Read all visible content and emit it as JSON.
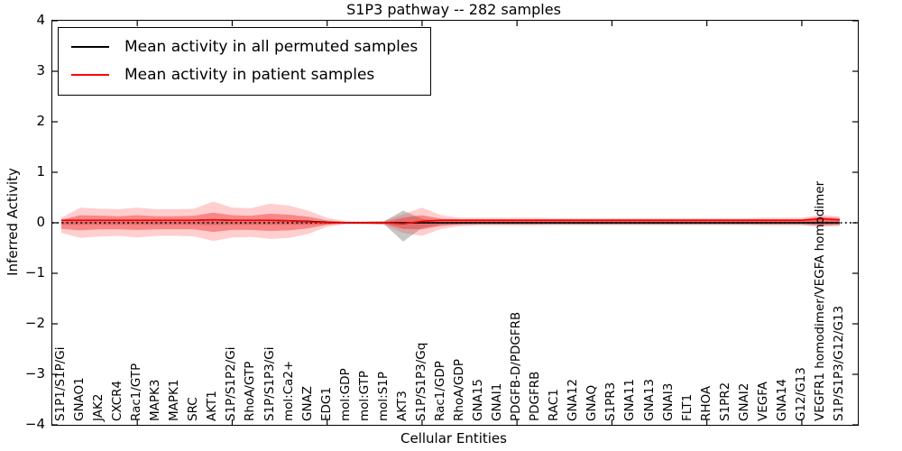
{
  "title": "S1P3 pathway -- 282 samples",
  "legend": {
    "entries": [
      {
        "label": "Mean activity in all permuted samples",
        "color": "#000000"
      },
      {
        "label": "Mean activity in patient samples",
        "color": "#ff0000"
      }
    ]
  },
  "chart_data": {
    "type": "line",
    "title": "S1P3 pathway -- 282 samples",
    "xlabel": "Cellular Entities",
    "ylabel": "Inferred Activity",
    "ylim": [
      -4,
      4
    ],
    "yticks": [
      4,
      3,
      2,
      1,
      0,
      -1,
      -2,
      -3,
      -4
    ],
    "grid": false,
    "legend_position": "upper left",
    "baseline": {
      "y": 0,
      "style": "dotted",
      "color": "#000000"
    },
    "categories": [
      "S1P1/S1P/Gi",
      "GNAO1",
      "JAK2",
      "CXCR4",
      "Rac1/GTP",
      "MAPK3",
      "MAPK1",
      "SRC",
      "AKT1",
      "S1P/S1P2/Gi",
      "RhoA/GTP",
      "S1P/S1P3/Gi",
      "mol:Ca2+",
      "GNAZ",
      "EDG1",
      "mol:GDP",
      "mol:GTP",
      "mol:S1P",
      "AKT3",
      "S1P/S1P3/Gq",
      "Rac1/GDP",
      "RhoA/GDP",
      "GNA15",
      "GNAI1",
      "PDGFB-D/PDGFRB",
      "PDGFRB",
      "RAC1",
      "GNA12",
      "GNAQ",
      "S1PR3",
      "GNA11",
      "GNA13",
      "GNAI3",
      "FLT1",
      "RHOA",
      "S1PR2",
      "GNAI2",
      "VEGFA",
      "GNA14",
      "G12/G13",
      "VEGFR1 homodimer/VEGFA homodimer",
      "S1P/S1P3/G12/G13"
    ],
    "series": [
      {
        "name": "Mean activity in all permuted samples",
        "color": "#000000",
        "width": 1.4,
        "values": [
          0.05,
          0.05,
          0.05,
          0.05,
          0.05,
          0.05,
          0.05,
          0.05,
          0.06,
          0.05,
          0.05,
          0.05,
          0.04,
          0.03,
          0.01,
          0,
          0,
          0,
          0,
          0,
          0,
          0,
          0,
          0,
          0,
          0,
          0,
          0,
          0,
          0,
          0,
          0,
          0,
          0,
          0,
          0,
          0,
          0,
          0,
          0,
          0,
          0
        ]
      },
      {
        "name": "Mean activity in patient samples",
        "color": "#ff0000",
        "width": 1.6,
        "values": [
          0.05,
          0.05,
          0.05,
          0.05,
          0.05,
          0.05,
          0.05,
          0.05,
          0.06,
          0.05,
          0.05,
          0.05,
          0.04,
          0.02,
          0.0,
          0.0,
          0.0,
          0.0,
          -0.02,
          0.03,
          0.05,
          0.05,
          0.05,
          0.05,
          0.05,
          0.05,
          0.05,
          0.05,
          0.05,
          0.05,
          0.05,
          0.05,
          0.05,
          0.05,
          0.05,
          0.05,
          0.05,
          0.05,
          0.05,
          0.05,
          0.08,
          0.06
        ]
      }
    ],
    "bands": [
      {
        "name": "permuted-sample-range",
        "fill": "#828282",
        "opacity": 0.45,
        "upper": [
          0.04,
          0.04,
          0.04,
          0.04,
          0.04,
          0.04,
          0.04,
          0.04,
          0.05,
          0.04,
          0.04,
          0.04,
          0.04,
          0.04,
          0.03,
          0.02,
          0.02,
          0.03,
          0.24,
          0.08,
          0.04,
          0.04,
          0.04,
          0.04,
          0.04,
          0.04,
          0.04,
          0.04,
          0.04,
          0.04,
          0.04,
          0.04,
          0.04,
          0.04,
          0.04,
          0.04,
          0.04,
          0.04,
          0.04,
          0.04,
          0.06,
          0.05
        ],
        "lower": [
          -0.04,
          -0.04,
          -0.04,
          -0.04,
          -0.04,
          -0.04,
          -0.04,
          -0.04,
          -0.05,
          -0.04,
          -0.04,
          -0.04,
          -0.04,
          -0.04,
          -0.03,
          -0.02,
          -0.02,
          -0.03,
          -0.37,
          -0.1,
          -0.04,
          -0.04,
          -0.04,
          -0.04,
          -0.04,
          -0.04,
          -0.04,
          -0.04,
          -0.04,
          -0.04,
          -0.04,
          -0.04,
          -0.04,
          -0.04,
          -0.04,
          -0.04,
          -0.04,
          -0.04,
          -0.04,
          -0.04,
          -0.06,
          -0.05
        ]
      },
      {
        "name": "patient-sample-range-outer",
        "fill": "#ff3c3c",
        "opacity": 0.25,
        "upper": [
          0.1,
          0.3,
          0.28,
          0.27,
          0.3,
          0.27,
          0.27,
          0.28,
          0.42,
          0.3,
          0.29,
          0.38,
          0.34,
          0.24,
          0.1,
          0.03,
          0.03,
          0.04,
          0.17,
          0.3,
          0.15,
          0.1,
          0.1,
          0.1,
          0.1,
          0.1,
          0.09,
          0.09,
          0.09,
          0.09,
          0.09,
          0.09,
          0.09,
          0.09,
          0.09,
          0.09,
          0.09,
          0.1,
          0.1,
          0.1,
          0.16,
          0.12
        ],
        "lower": [
          -0.2,
          -0.3,
          -0.27,
          -0.26,
          -0.29,
          -0.26,
          -0.26,
          -0.27,
          -0.36,
          -0.29,
          -0.28,
          -0.32,
          -0.3,
          -0.22,
          -0.08,
          -0.03,
          -0.03,
          -0.04,
          -0.2,
          -0.26,
          -0.12,
          -0.07,
          -0.05,
          -0.05,
          -0.05,
          -0.05,
          -0.04,
          -0.04,
          -0.04,
          -0.04,
          -0.04,
          -0.04,
          -0.04,
          -0.04,
          -0.04,
          -0.04,
          -0.04,
          -0.05,
          -0.05,
          -0.05,
          -0.08,
          -0.06
        ]
      },
      {
        "name": "patient-sample-range-inner",
        "fill": "#f01e1e",
        "opacity": 0.4,
        "upper": [
          0.06,
          0.15,
          0.14,
          0.13,
          0.15,
          0.13,
          0.13,
          0.14,
          0.2,
          0.15,
          0.14,
          0.18,
          0.16,
          0.12,
          0.05,
          0.02,
          0.02,
          0.02,
          0.1,
          0.15,
          0.08,
          0.07,
          0.07,
          0.07,
          0.07,
          0.07,
          0.07,
          0.07,
          0.07,
          0.07,
          0.07,
          0.07,
          0.07,
          0.07,
          0.07,
          0.07,
          0.07,
          0.07,
          0.07,
          0.07,
          0.12,
          0.09
        ],
        "lower": [
          -0.12,
          -0.15,
          -0.13,
          -0.13,
          -0.14,
          -0.13,
          -0.13,
          -0.13,
          -0.18,
          -0.14,
          -0.14,
          -0.16,
          -0.15,
          -0.11,
          -0.04,
          -0.01,
          -0.01,
          -0.02,
          -0.12,
          -0.13,
          -0.06,
          -0.03,
          -0.02,
          -0.02,
          -0.02,
          -0.02,
          -0.02,
          -0.02,
          -0.02,
          -0.02,
          -0.02,
          -0.02,
          -0.02,
          -0.02,
          -0.02,
          -0.02,
          -0.02,
          -0.02,
          -0.02,
          -0.02,
          -0.04,
          -0.03
        ]
      }
    ]
  }
}
